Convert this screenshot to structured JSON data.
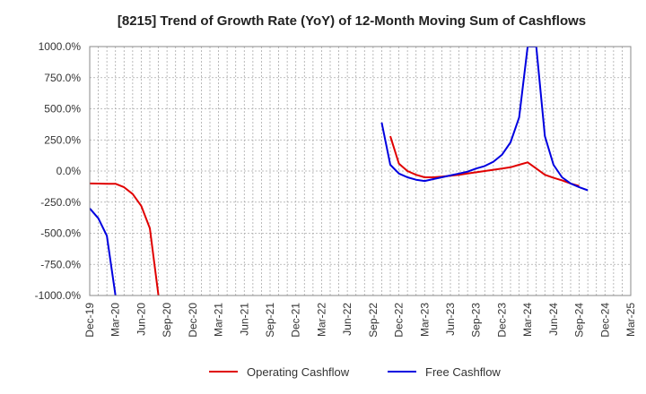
{
  "chart_data": {
    "type": "line",
    "title": "[8215]  Trend of Growth Rate (YoY) of 12-Month Moving Sum of Cashflows",
    "xlabel": "",
    "ylabel": "",
    "ylim": [
      -1000,
      1000
    ],
    "yticks": [
      1000,
      750,
      500,
      250,
      0,
      -250,
      -500,
      -750,
      -1000
    ],
    "ytick_labels": [
      "1000.0%",
      "750.0%",
      "500.0%",
      "250.0%",
      "0.0%",
      "-250.0%",
      "-500.0%",
      "-750.0%",
      "-1000.0%"
    ],
    "xticks": [
      "Dec-19",
      "Mar-20",
      "Jun-20",
      "Sep-20",
      "Dec-20",
      "Mar-21",
      "Jun-21",
      "Sep-21",
      "Dec-21",
      "Mar-22",
      "Jun-22",
      "Sep-22",
      "Dec-22",
      "Mar-23",
      "Jun-23",
      "Sep-23",
      "Dec-23",
      "Mar-24",
      "Jun-24",
      "Sep-24",
      "Dec-24",
      "Mar-25"
    ],
    "grid": true,
    "legend_position": "bottom",
    "series": [
      {
        "name": "Operating Cashflow",
        "color": "#e00000",
        "points": [
          [
            "Dec-19",
            -100
          ],
          [
            "Jan-20",
            -101
          ],
          [
            "Feb-20",
            -102
          ],
          [
            "Mar-20",
            -102
          ],
          [
            "Apr-20",
            -130
          ],
          [
            "May-20",
            -185
          ],
          [
            "Jun-20",
            -280
          ],
          [
            "Jul-20",
            -460
          ],
          [
            "Aug-20",
            -1000
          ],
          null,
          [
            "Nov-22",
            280
          ],
          [
            "Dec-22",
            60
          ],
          [
            "Jan-23",
            0
          ],
          [
            "Feb-23",
            -30
          ],
          [
            "Mar-23",
            -50
          ],
          [
            "Apr-23",
            -50
          ],
          [
            "May-23",
            -45
          ],
          [
            "Jun-23",
            -38
          ],
          [
            "Jul-23",
            -30
          ],
          [
            "Aug-23",
            -20
          ],
          [
            "Sep-23",
            -10
          ],
          [
            "Oct-23",
            0
          ],
          [
            "Nov-23",
            10
          ],
          [
            "Dec-23",
            20
          ],
          [
            "Jan-24",
            30
          ],
          [
            "Feb-24",
            50
          ],
          [
            "Mar-24",
            70
          ],
          [
            "Apr-24",
            20
          ],
          [
            "May-24",
            -30
          ],
          [
            "Jun-24",
            -55
          ],
          [
            "Jul-24",
            -75
          ],
          [
            "Aug-24",
            -100
          ],
          [
            "Sep-24",
            -120
          ]
        ]
      },
      {
        "name": "Free Cashflow",
        "color": "#0000e0",
        "points": [
          [
            "Dec-19",
            -300
          ],
          [
            "Jan-20",
            -380
          ],
          [
            "Feb-20",
            -520
          ],
          [
            "Mar-20",
            -1000
          ],
          null,
          [
            "Oct-22",
            390
          ],
          [
            "Nov-22",
            50
          ],
          [
            "Dec-22",
            -20
          ],
          [
            "Jan-23",
            -50
          ],
          [
            "Feb-23",
            -70
          ],
          [
            "Mar-23",
            -80
          ],
          [
            "Apr-23",
            -65
          ],
          [
            "May-23",
            -50
          ],
          [
            "Jun-23",
            -35
          ],
          [
            "Jul-23",
            -20
          ],
          [
            "Aug-23",
            -5
          ],
          [
            "Sep-23",
            20
          ],
          [
            "Oct-23",
            40
          ],
          [
            "Nov-23",
            75
          ],
          [
            "Dec-23",
            130
          ],
          [
            "Jan-24",
            230
          ],
          [
            "Feb-24",
            430
          ],
          [
            "Mar-24",
            1000
          ],
          [
            "Apr-24",
            1000
          ],
          [
            "May-24",
            280
          ],
          [
            "Jun-24",
            50
          ],
          [
            "Jul-24",
            -50
          ],
          [
            "Aug-24",
            -100
          ],
          [
            "Sep-24",
            -130
          ],
          [
            "Oct-24",
            -155
          ]
        ]
      }
    ]
  }
}
